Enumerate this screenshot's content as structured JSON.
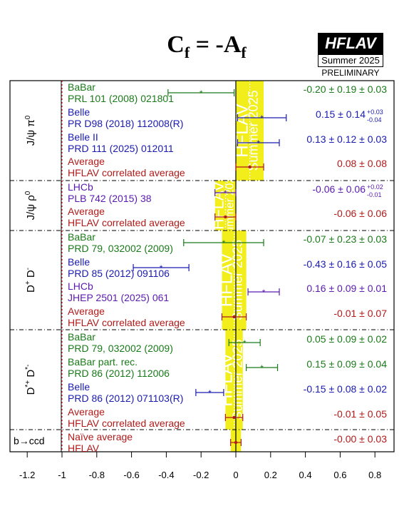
{
  "header": {
    "title_main": "C",
    "title_sub": "f",
    "title_eq": " = -A",
    "title_sub2": "f",
    "logo_text": "HFLAV",
    "logo_season": "Summer 2025",
    "logo_status": "PRELIMINARY"
  },
  "chart_data": {
    "type": "scatter",
    "title": "Cf = -Af",
    "xlim": [
      -1.3,
      0.9
    ],
    "x_ticks": [
      "-1.2",
      "-1",
      "-0.8",
      "-0.6",
      "-0.4",
      "-0.2",
      "0",
      "0.2",
      "0.4",
      "0.6",
      "0.8"
    ],
    "x_tick_values": [
      -1.2,
      -1.0,
      -0.8,
      -0.6,
      -0.4,
      -0.2,
      0.0,
      0.2,
      0.4,
      0.6,
      0.8
    ],
    "reference_line_x": -1,
    "band_watermark": "HFLAV",
    "band_watermark_sub": "Summer 2025",
    "groups": [
      {
        "label": "J/ψ π",
        "label_sup": "0",
        "band": {
          "center": 0.08,
          "low": 0.0,
          "high": 0.16
        },
        "entries": [
          {
            "name": "BaBar",
            "ref": "PRL 101 (2008) 021801",
            "value": -0.2,
            "err_low": 0.19,
            "err_high": 0.19,
            "result_text": "-0.20 ± 0.19 ± 0.03",
            "color": "#1a7a1a",
            "kind": "measurement"
          },
          {
            "name": "Belle",
            "ref": "PR D98 (2018) 112008(R)",
            "value": 0.15,
            "err_low": 0.14,
            "err_high": 0.14,
            "result_text": "0.15 ± 0.14",
            "result_sup": "+0.03",
            "result_sub": "-0.04",
            "color": "#1a1ab0",
            "kind": "measurement"
          },
          {
            "name": "Belle II",
            "ref": "PRD 111 (2025) 012011",
            "value": 0.13,
            "err_low": 0.12,
            "err_high": 0.12,
            "result_text": "0.13 ± 0.12 ± 0.03",
            "color": "#1a1ab0",
            "kind": "measurement"
          },
          {
            "name": "Average",
            "ref": "HFLAV correlated average",
            "value": 0.08,
            "err_low": 0.08,
            "err_high": 0.08,
            "result_text": "0.08 ± 0.08",
            "color": "#b01a1a",
            "kind": "average"
          }
        ]
      },
      {
        "label": "J/ψ ρ",
        "label_sup": "0",
        "band": {
          "center": -0.06,
          "low": -0.12,
          "high": 0.0
        },
        "entries": [
          {
            "name": "LHCb",
            "ref": "PLB 742 (2015) 38",
            "value": -0.06,
            "err_low": 0.06,
            "err_high": 0.06,
            "result_text": "-0.06 ± 0.06",
            "result_sup": "+0.02",
            "result_sub": "-0.01",
            "color": "#5a1ab0",
            "kind": "measurement"
          },
          {
            "name": "Average",
            "ref": "HFLAV correlated average",
            "value": -0.06,
            "err_low": 0.06,
            "err_high": 0.06,
            "result_text": "-0.06 ± 0.06",
            "color": "#b01a1a",
            "kind": "average"
          }
        ]
      },
      {
        "label": "D",
        "label_sup": "+",
        "label_b": " D",
        "label_sup_b": "-",
        "band": {
          "center": -0.01,
          "low": -0.08,
          "high": 0.06
        },
        "entries": [
          {
            "name": "BaBar",
            "ref": "PRD 79, 032002 (2009)",
            "value": -0.07,
            "err_low": 0.23,
            "err_high": 0.23,
            "result_text": "-0.07 ± 0.23 ± 0.03",
            "color": "#1a7a1a",
            "kind": "measurement"
          },
          {
            "name": "Belle",
            "ref": "PRD 85 (2012) 091106",
            "value": -0.43,
            "err_low": 0.16,
            "err_high": 0.16,
            "result_text": "-0.43 ± 0.16 ± 0.05",
            "color": "#1a1ab0",
            "kind": "measurement"
          },
          {
            "name": "LHCb",
            "ref": "JHEP 2501 (2025) 061",
            "value": 0.16,
            "err_low": 0.09,
            "err_high": 0.09,
            "result_text": "0.16 ± 0.09 ± 0.01",
            "color": "#5a1ab0",
            "kind": "measurement"
          },
          {
            "name": "Average",
            "ref": "HFLAV correlated average",
            "value": -0.01,
            "err_low": 0.07,
            "err_high": 0.07,
            "result_text": "-0.01 ± 0.07",
            "color": "#b01a1a",
            "kind": "average"
          }
        ]
      },
      {
        "label": "D",
        "label_sup": "*+",
        "label_b": " D",
        "label_sup_b": "*-",
        "band": {
          "center": -0.01,
          "low": -0.06,
          "high": 0.04
        },
        "entries": [
          {
            "name": "BaBar",
            "ref": "PRD 79, 032002 (2009)",
            "value": 0.05,
            "err_low": 0.09,
            "err_high": 0.09,
            "result_text": "0.05 ± 0.09 ± 0.02",
            "color": "#1a7a1a",
            "kind": "measurement"
          },
          {
            "name": "BaBar part. rec.",
            "ref": "PRD 86 (2012) 112006",
            "value": 0.15,
            "err_low": 0.09,
            "err_high": 0.09,
            "result_text": "0.15 ± 0.09 ± 0.04",
            "color": "#1a7a1a",
            "kind": "measurement"
          },
          {
            "name": "Belle",
            "ref": "PRD 86 (2012) 071103(R)",
            "value": -0.15,
            "err_low": 0.08,
            "err_high": 0.08,
            "result_text": "-0.15 ± 0.08 ± 0.02",
            "color": "#1a1ab0",
            "kind": "measurement"
          },
          {
            "name": "Average",
            "ref": "HFLAV correlated average",
            "value": -0.01,
            "err_low": 0.05,
            "err_high": 0.05,
            "result_text": "-0.01 ± 0.05",
            "color": "#b01a1a",
            "kind": "average"
          }
        ]
      },
      {
        "label": "b→ccd",
        "band": {
          "center": 0.0,
          "low": -0.03,
          "high": 0.03
        },
        "entries": [
          {
            "name": "Naïve average",
            "ref": "HFLAV",
            "value": 0.0,
            "err_low": 0.03,
            "err_high": 0.03,
            "result_text": "-0.00 ± 0.03",
            "color": "#b01a1a",
            "kind": "average"
          }
        ]
      }
    ]
  }
}
